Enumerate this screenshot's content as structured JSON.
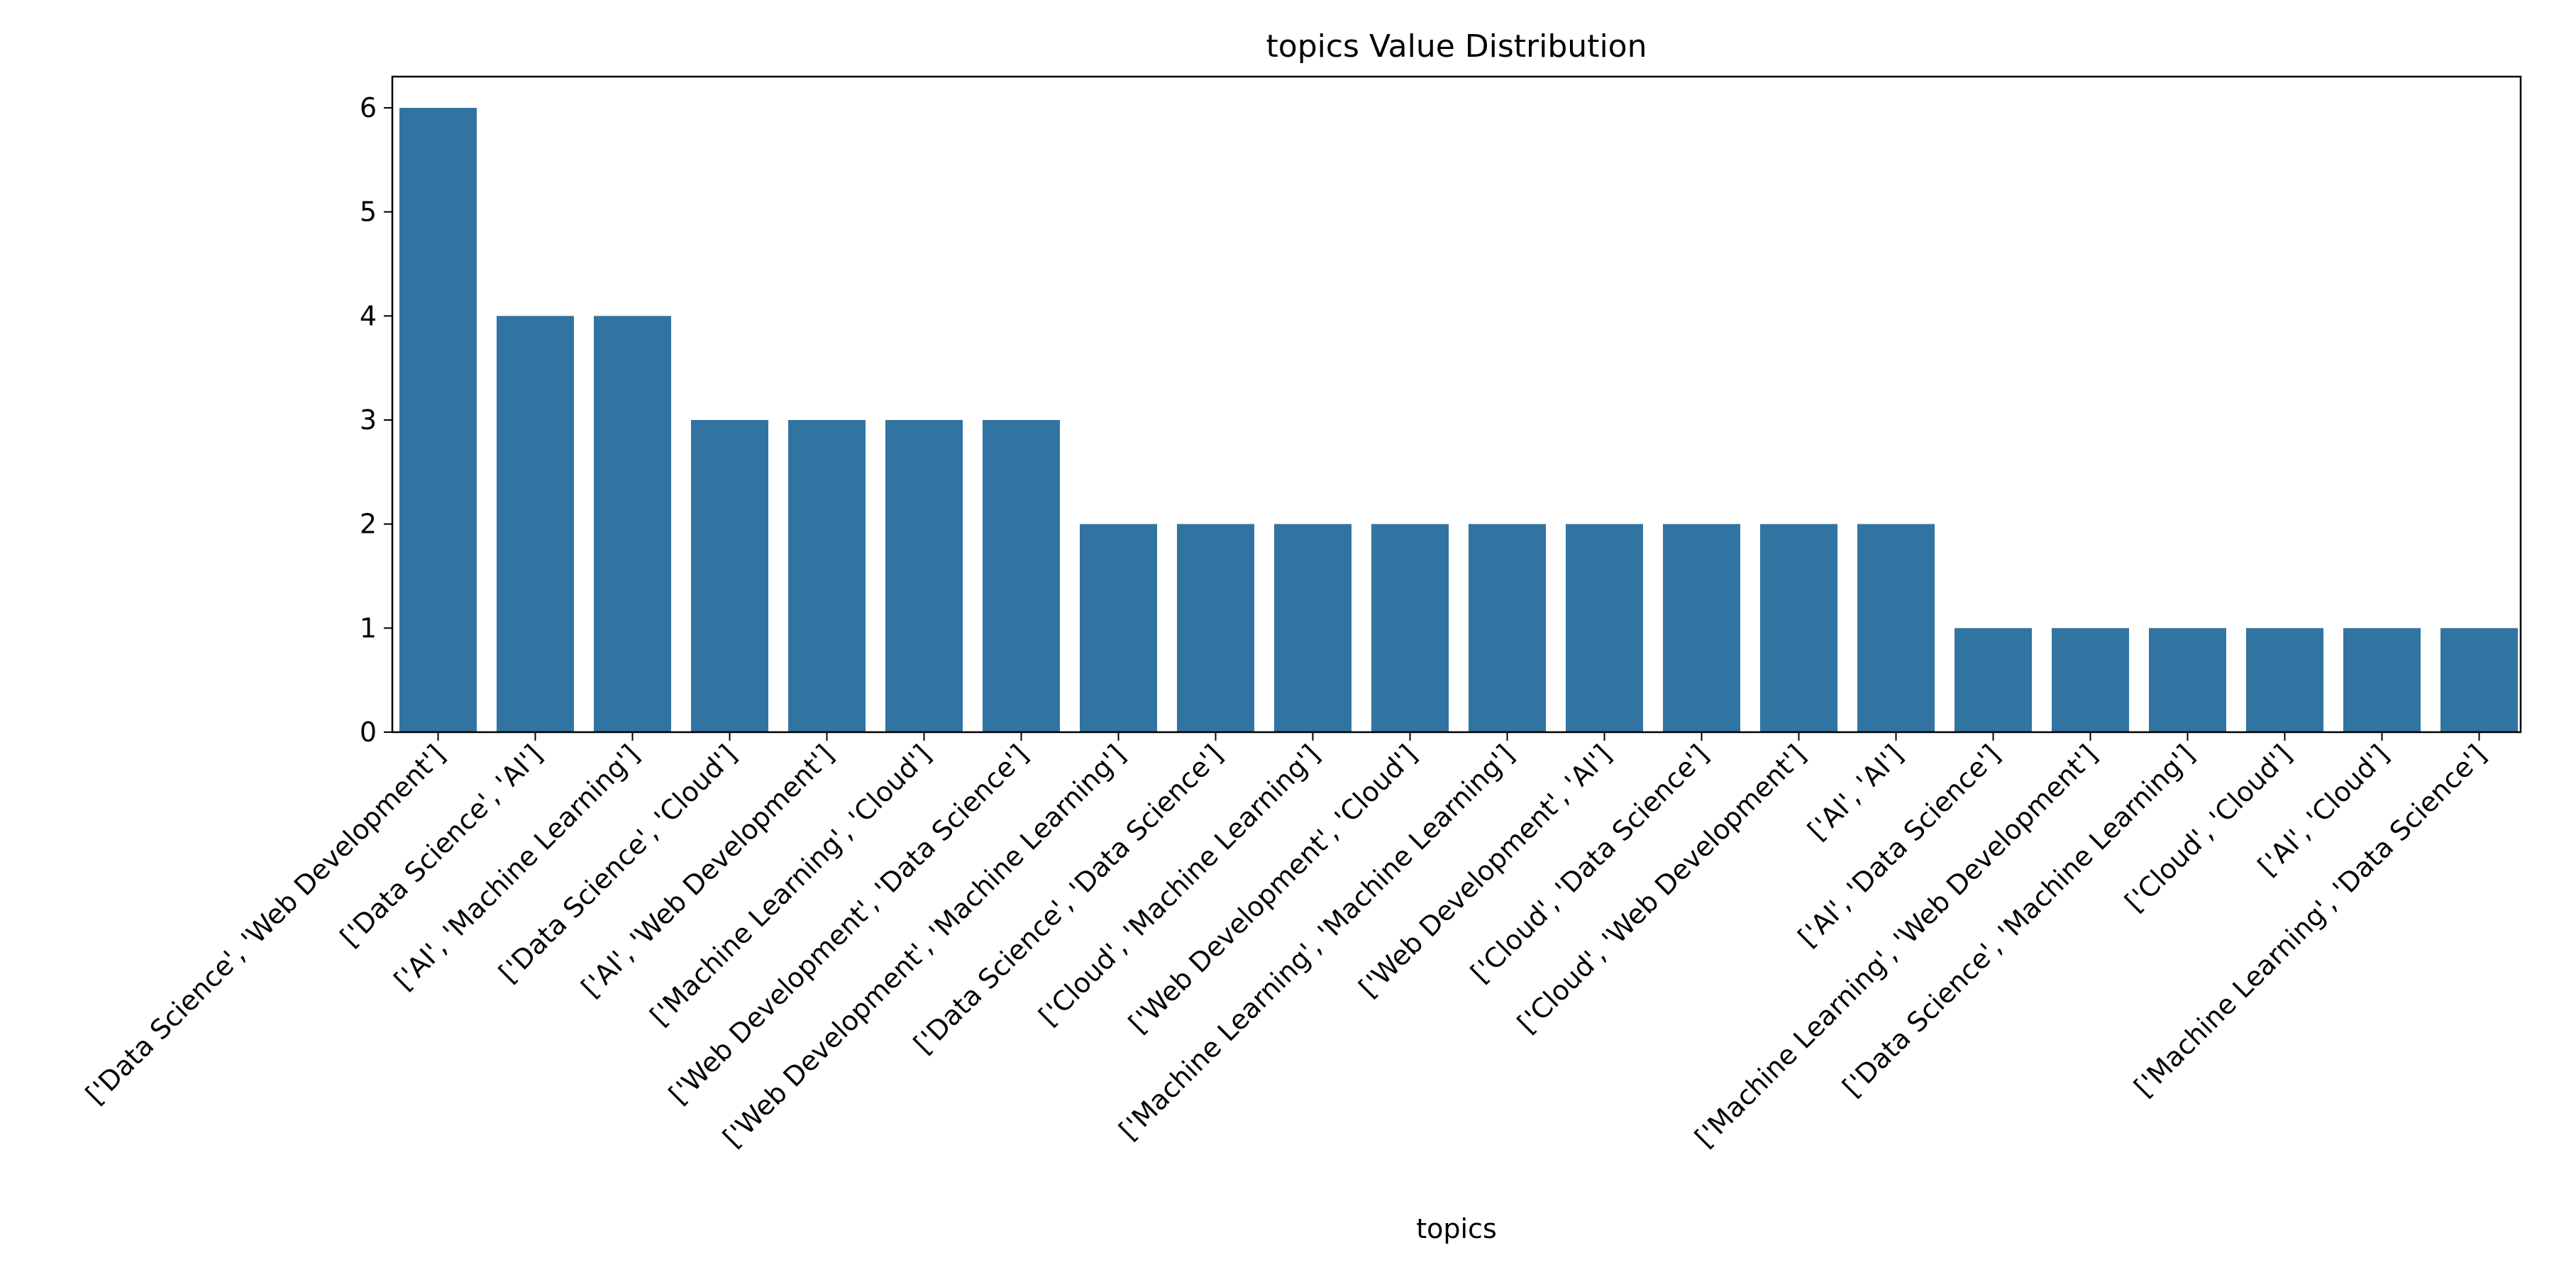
{
  "chart_data": {
    "type": "bar",
    "title": "topics Value Distribution",
    "xlabel": "topics",
    "ylabel": "",
    "ylim": [
      0,
      6.3
    ],
    "yticks": [
      0,
      1,
      2,
      3,
      4,
      5,
      6
    ],
    "grid": false,
    "bar_color": "#3274a1",
    "categories": [
      "['Data Science', 'Web Development']",
      "['Data Science', 'AI']",
      "['AI', 'Machine Learning']",
      "['Data Science', 'Cloud']",
      "['AI', 'Web Development']",
      "['Machine Learning', 'Cloud']",
      "['Web Development', 'Data Science']",
      "['Web Development', 'Machine Learning']",
      "['Data Science', 'Data Science']",
      "['Cloud', 'Machine Learning']",
      "['Web Development', 'Cloud']",
      "['Machine Learning', 'Machine Learning']",
      "['Web Development', 'AI']",
      "['Cloud', 'Data Science']",
      "['Cloud', 'Web Development']",
      "['AI', 'AI']",
      "['AI', 'Data Science']",
      "['Machine Learning', 'Web Development']",
      "['Data Science', 'Machine Learning']",
      "['Cloud', 'Cloud']",
      "['AI', 'Cloud']",
      "['Machine Learning', 'Data Science']"
    ],
    "values": [
      6,
      4,
      4,
      3,
      3,
      3,
      3,
      2,
      2,
      2,
      2,
      2,
      2,
      2,
      2,
      2,
      1,
      1,
      1,
      1,
      1,
      1
    ]
  }
}
